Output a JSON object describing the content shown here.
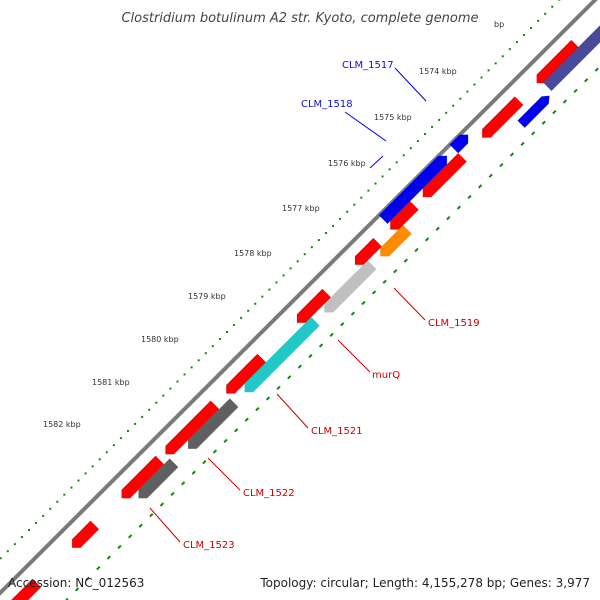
{
  "title": "Clostridium botulinum A2 str. Kyoto, complete genome",
  "footer": {
    "accession": "Accession: NC_012563",
    "topology": "Topology: circular; Length: 4,155,278 bp; Genes: 3,977"
  },
  "ruler": {
    "partial_label": "bp",
    "labels": [
      "1574 kbp",
      "1575 kbp",
      "1576 kbp",
      "1577 kbp",
      "1578 kbp",
      "1579 kbp",
      "1580 kbp",
      "1581 kbp",
      "1582 kbp"
    ]
  },
  "gene_labels": {
    "forward": [
      "CLM_1517",
      "CLM_1518"
    ],
    "reverse": [
      "CLM_1519",
      "murQ",
      "CLM_1521",
      "CLM_1522",
      "CLM_1523"
    ]
  },
  "colors": {
    "backbone": "#7a7a7a",
    "cds_feature": "#ff0000",
    "forward_gene": "#0000ee",
    "forward_gene_partial": "#4a4a9a",
    "CLM_1519": "#ff8c00",
    "murQ": "#c0c0c0",
    "CLM_1521": "#20c8c8",
    "CLM_1522": "#606060",
    "CLM_1523": "#606060",
    "gc_dots": "#118811",
    "label_forward": "#1010cc",
    "label_reverse": "#cc0000"
  }
}
